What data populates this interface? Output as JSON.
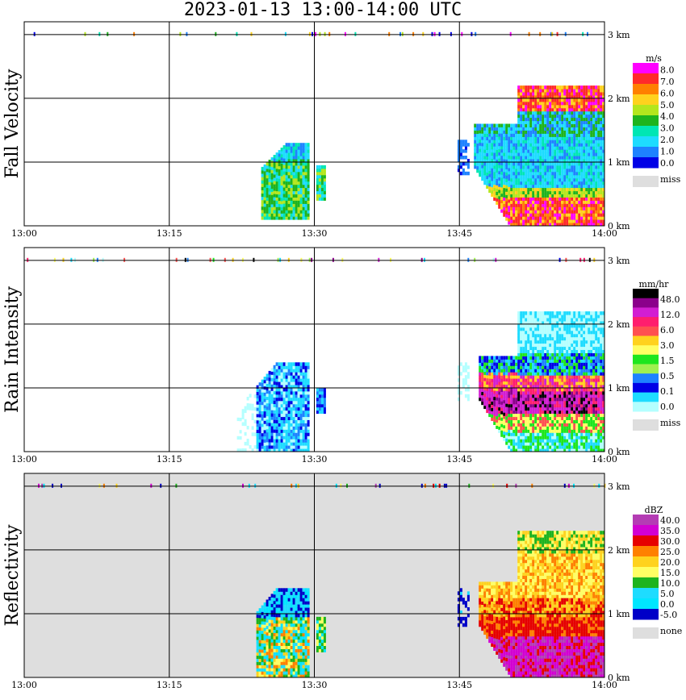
{
  "title": "2023-01-13  13:00-14:00 UTC",
  "time_ticks": [
    "13:00",
    "13:15",
    "13:30",
    "13:45",
    "14:00"
  ],
  "height_ticks": [
    "0 km",
    "1 km",
    "2 km",
    "3 km"
  ],
  "colors": {
    "grid": "#000000",
    "missing": "#dedede"
  },
  "chart_data": [
    {
      "type": "heatmap",
      "title": "Fall Velocity",
      "ylabel": "Fall Velocity",
      "xlim": [
        "13:00",
        "14:00"
      ],
      "ylim_km": [
        0,
        3.2
      ],
      "colorbar": {
        "unit": "m/s",
        "labels": [
          "8.0",
          "7.0",
          "6.0",
          "5.0",
          "4.0",
          "3.0",
          "2.0",
          "1.0",
          "0.0"
        ],
        "colors": [
          "#ff00ff",
          "#ff2a2a",
          "#ff8000",
          "#ffd21e",
          "#b4e61e",
          "#1eb41e",
          "#00e6b4",
          "#1edcff",
          "#1e82ff",
          "#0000e6"
        ],
        "missing_label": "miss"
      }
    },
    {
      "type": "heatmap",
      "title": "Rain Intensity",
      "ylabel": "Rain Intensity",
      "xlim": [
        "13:00",
        "14:00"
      ],
      "ylim_km": [
        0,
        3.2
      ],
      "colorbar": {
        "unit": "mm/hr",
        "labels": [
          "48.0",
          "12.0",
          "6.0",
          "3.0",
          "1.5",
          "0.5",
          "0.1",
          "0.0"
        ],
        "colors": [
          "#000000",
          "#8b008b",
          "#d21ed2",
          "#ff1e6e",
          "#ff5050",
          "#ffd21e",
          "#ffff64",
          "#1ee61e",
          "#a0f050",
          "#1e82ff",
          "#0000e6",
          "#1edcff",
          "#b4ffff"
        ],
        "missing_label": "miss"
      }
    },
    {
      "type": "heatmap",
      "title": "Reflectivity",
      "ylabel": "Reflectivity",
      "xlim": [
        "13:00",
        "14:00"
      ],
      "ylim_km": [
        0,
        3.2
      ],
      "colorbar": {
        "unit": "dBZ",
        "labels": [
          "40.0",
          "35.0",
          "30.0",
          "25.0",
          "20.0",
          "15.0",
          "10.0",
          "5.0",
          "0.0",
          "-5.0"
        ],
        "colors": [
          "#b43cb4",
          "#d200d2",
          "#e60000",
          "#ff8000",
          "#ffd21e",
          "#ffff64",
          "#1eb41e",
          "#1edcff",
          "#00e6ff",
          "#0000c8"
        ],
        "missing_label": "none"
      }
    }
  ]
}
